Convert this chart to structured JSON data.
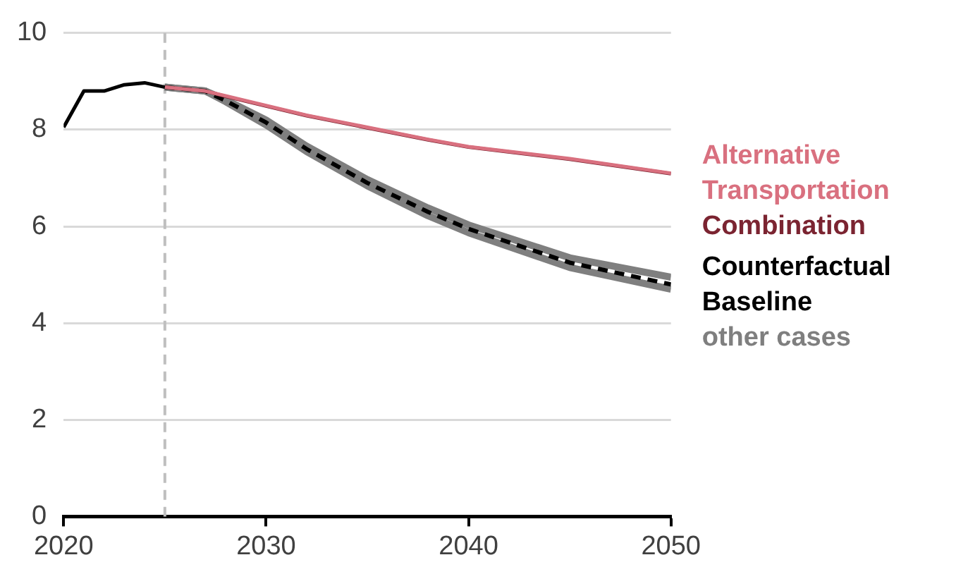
{
  "chart_data": {
    "type": "line",
    "x": [
      2020,
      2021,
      2022,
      2023,
      2024,
      2025,
      2027,
      2028,
      2030,
      2032,
      2035,
      2038,
      2040,
      2045,
      2050
    ],
    "xlim": [
      2020,
      2050
    ],
    "xticks": [
      2020,
      2030,
      2040,
      2050
    ],
    "ylim": [
      0,
      10
    ],
    "yticks": [
      0,
      2,
      4,
      6,
      8,
      10
    ],
    "grid": "y",
    "legend": "right",
    "line_style": "solid",
    "marker": "none",
    "ref_lines": [
      {
        "axis": "x",
        "value": 2025,
        "color": "#bfbfbf",
        "line_style": "dashed"
      }
    ],
    "series": [
      {
        "color": "#000000",
        "values": [
          8.05,
          8.8,
          8.8,
          8.93,
          8.97,
          8.88,
          null,
          null,
          null,
          null,
          null,
          null,
          null,
          null,
          null
        ]
      },
      {
        "name": "Alternative Transportation",
        "color": "#d9707f",
        "values": [
          null,
          null,
          null,
          null,
          null,
          8.88,
          8.8,
          8.7,
          8.5,
          8.3,
          8.05,
          7.8,
          7.65,
          7.4,
          7.1
        ]
      },
      {
        "name": "Combination",
        "color": "#7b2431",
        "values": [
          null,
          null,
          null,
          null,
          null,
          8.88,
          8.8,
          8.69,
          8.49,
          8.29,
          8.04,
          7.79,
          7.64,
          7.39,
          7.09
        ]
      },
      {
        "name": "Counterfactual Baseline",
        "color": "#000000",
        "line_style": "dashed",
        "values": [
          null,
          null,
          null,
          null,
          null,
          8.88,
          8.8,
          8.6,
          8.15,
          7.6,
          6.9,
          6.3,
          5.95,
          5.25,
          4.8
        ]
      },
      {
        "name": "other cases",
        "color": "#7f7f7f",
        "values": [
          null,
          null,
          null,
          null,
          null,
          8.88,
          8.8,
          8.62,
          8.2,
          7.66,
          6.97,
          6.38,
          6.03,
          5.35,
          4.95
        ]
      },
      {
        "color": "#7f7f7f",
        "values": [
          null,
          null,
          null,
          null,
          null,
          8.88,
          8.8,
          8.58,
          8.1,
          7.55,
          6.84,
          6.22,
          5.87,
          5.15,
          4.7
        ]
      }
    ]
  }
}
